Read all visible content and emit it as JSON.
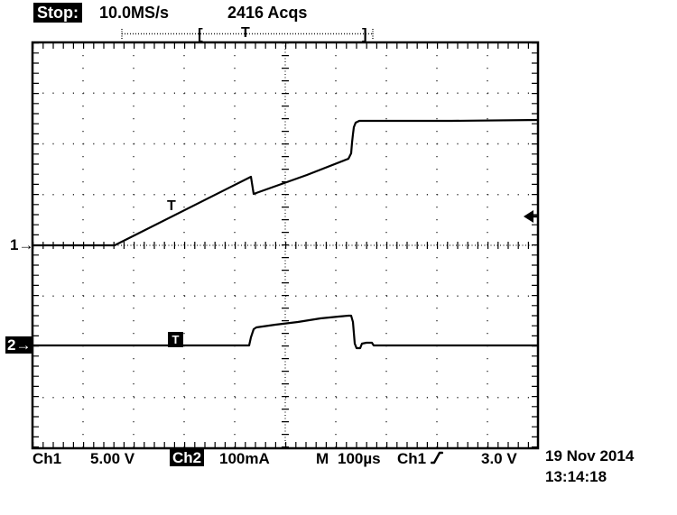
{
  "header": {
    "status": "Stop:",
    "sample_rate": "10.0MS/s",
    "acquisitions": "2416 Acqs"
  },
  "record_bar": {
    "bracket_left": "[",
    "trigger_marker": "T",
    "bracket_right": "]"
  },
  "graticule_markers": {
    "ch1_ground": "1→",
    "ch2_ground": "2→",
    "ch1_trigger_t": "T",
    "ch2_trigger_t": "T"
  },
  "footer": {
    "ch1_label": "Ch1",
    "ch1_scale": "5.00 V",
    "ch2_label": "Ch2",
    "ch2_scale": "100mA",
    "timebase_label": "M",
    "timebase": "100µs",
    "trigger_source": "Ch1",
    "trigger_level": "3.0 V",
    "date": "19 Nov 2014",
    "time": "13:14:18"
  },
  "colors": {
    "trace": "#000000",
    "background": "#ffffff",
    "inverted_bg": "#000000",
    "inverted_fg": "#ffffff"
  },
  "waveforms": {
    "ch1": {
      "label": "Ch1",
      "points": [
        [
          37,
          272
        ],
        [
          127,
          272
        ],
        [
          278,
          196
        ],
        [
          281,
          215
        ],
        [
          340,
          194
        ],
        [
          386,
          176
        ],
        [
          389,
          170
        ],
        [
          390,
          158
        ],
        [
          391,
          149
        ],
        [
          392,
          141
        ],
        [
          394,
          136
        ],
        [
          398,
          134
        ],
        [
          500,
          134
        ],
        [
          596,
          133
        ]
      ]
    },
    "ch2": {
      "label": "Ch2",
      "points": [
        [
          37,
          383
        ],
        [
          276,
          383
        ],
        [
          278,
          374
        ],
        [
          281,
          365
        ],
        [
          284,
          363
        ],
        [
          305,
          360
        ],
        [
          330,
          357
        ],
        [
          355,
          353
        ],
        [
          375,
          351
        ],
        [
          386,
          350
        ],
        [
          389,
          350
        ],
        [
          391,
          357
        ],
        [
          392,
          369
        ],
        [
          393,
          381
        ],
        [
          395,
          386
        ],
        [
          399,
          386
        ],
        [
          401,
          381
        ],
        [
          406,
          380
        ],
        [
          412,
          380
        ],
        [
          414,
          383
        ],
        [
          596,
          383
        ]
      ]
    }
  },
  "chart_data": {
    "type": "line",
    "title": "Oscilloscope acquisition (Stop, 10.0MS/s, 2416 Acqs)",
    "xlabel": "time (100 µs/div, 10 divisions)",
    "x_unit": "µs",
    "series": [
      {
        "name": "Ch1 (5.00 V/div)",
        "unit": "V",
        "points_t_v": [
          [
            0,
            0
          ],
          [
            162,
            0
          ],
          [
            432,
            6.8
          ],
          [
            437,
            5.1
          ],
          [
            625,
            8.5
          ],
          [
            640,
            12.3
          ],
          [
            1000,
            12.3
          ]
        ]
      },
      {
        "name": "Ch2 (100 mA/div)",
        "unit": "mA",
        "points_t_v": [
          [
            0,
            0
          ],
          [
            430,
            0
          ],
          [
            435,
            33
          ],
          [
            622,
            62
          ],
          [
            636,
            0
          ],
          [
            1000,
            0
          ]
        ]
      }
    ],
    "trigger": {
      "source": "Ch1",
      "slope": "rising",
      "level_v": 3.0
    },
    "timebase": "100µs/div",
    "grid": true,
    "legend_position": "bottom"
  }
}
